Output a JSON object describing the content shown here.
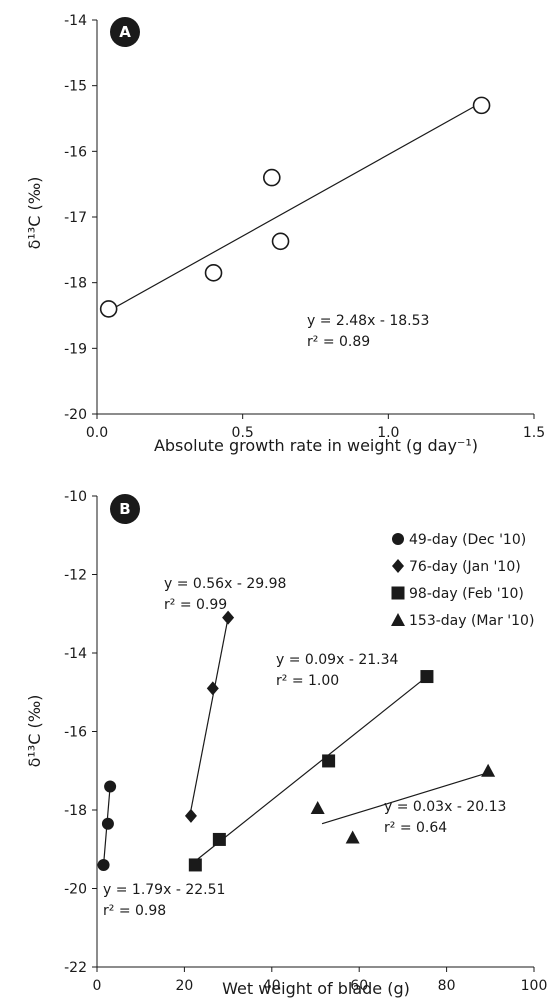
{
  "chart_data": [
    {
      "type": "scatter",
      "panel_label": "A",
      "xlabel": "Absolute growth rate in weight (g day⁻¹)",
      "ylabel": "δ¹³C (‰)",
      "xlim": [
        0,
        1.5
      ],
      "ylim": [
        -20,
        -14
      ],
      "x_ticks": [
        "0.0",
        "0.5",
        "1.0",
        "1.5"
      ],
      "y_ticks": [
        "-20",
        "-19",
        "-18",
        "-17",
        "-16",
        "-15",
        "-14"
      ],
      "grid": false,
      "series": [
        {
          "marker": "open-circle",
          "points": [
            [
              0.04,
              -18.4
            ],
            [
              0.4,
              -17.85
            ],
            [
              0.6,
              -16.4
            ],
            [
              0.63,
              -17.37
            ],
            [
              1.32,
              -15.3
            ]
          ],
          "fit": {
            "x_range": [
              0.04,
              1.32
            ],
            "slope": 2.48,
            "intercept": -18.53
          },
          "equation": "y = 2.48x - 18.53",
          "r2": "r² = 0.89"
        }
      ]
    },
    {
      "type": "scatter",
      "panel_label": "B",
      "xlabel": "Wet weight of blade (g)",
      "ylabel": "δ¹³C (‰)",
      "xlim": [
        0,
        100
      ],
      "ylim": [
        -22,
        -10
      ],
      "x_ticks": [
        "0",
        "20",
        "40",
        "60",
        "80",
        "100"
      ],
      "y_ticks": [
        "-22",
        "-20",
        "-18",
        "-16",
        "-14",
        "-12",
        "-10"
      ],
      "grid": false,
      "legend_position": "top-right",
      "series": [
        {
          "name": "49-day (Dec '10)",
          "marker": "circle",
          "points": [
            [
              1.5,
              -19.4
            ],
            [
              2.5,
              -18.35
            ],
            [
              3.0,
              -17.4
            ]
          ],
          "fit": {
            "x_range": [
              1.5,
              3.0
            ],
            "y_range": [
              -19.4,
              -17.4
            ]
          },
          "equation": "y = 1.79x - 22.51",
          "r2": "r² = 0.98"
        },
        {
          "name": "76-day (Jan '10)",
          "marker": "diamond",
          "points": [
            [
              21.5,
              -18.15
            ],
            [
              26.5,
              -14.9
            ],
            [
              30.0,
              -13.1
            ]
          ],
          "fit": {
            "x_range": [
              21.5,
              30.0
            ],
            "y_range": [
              -18.0,
              -13.1
            ]
          },
          "equation": "y = 0.56x - 29.98",
          "r2": "r² = 0.99"
        },
        {
          "name": "98-day (Feb '10)",
          "marker": "square",
          "points": [
            [
              22.5,
              -19.4
            ],
            [
              28.0,
              -18.75
            ],
            [
              53.0,
              -16.75
            ],
            [
              75.5,
              -14.6
            ]
          ],
          "fit": {
            "x_range": [
              22.5,
              75.5
            ],
            "y_range": [
              -19.3,
              -14.6
            ]
          },
          "equation": "y = 0.09x - 21.34",
          "r2": "r² = 1.00"
        },
        {
          "name": "153-day (Mar '10)",
          "marker": "triangle",
          "points": [
            [
              50.5,
              -17.95
            ],
            [
              58.5,
              -18.7
            ],
            [
              89.5,
              -17.0
            ]
          ],
          "fit": {
            "x_range": [
              51.5,
              89.5
            ],
            "y_range": [
              -18.35,
              -17.05
            ]
          },
          "equation": "y = 0.03x - 20.13",
          "r2": "r² = 0.64"
        }
      ]
    }
  ]
}
